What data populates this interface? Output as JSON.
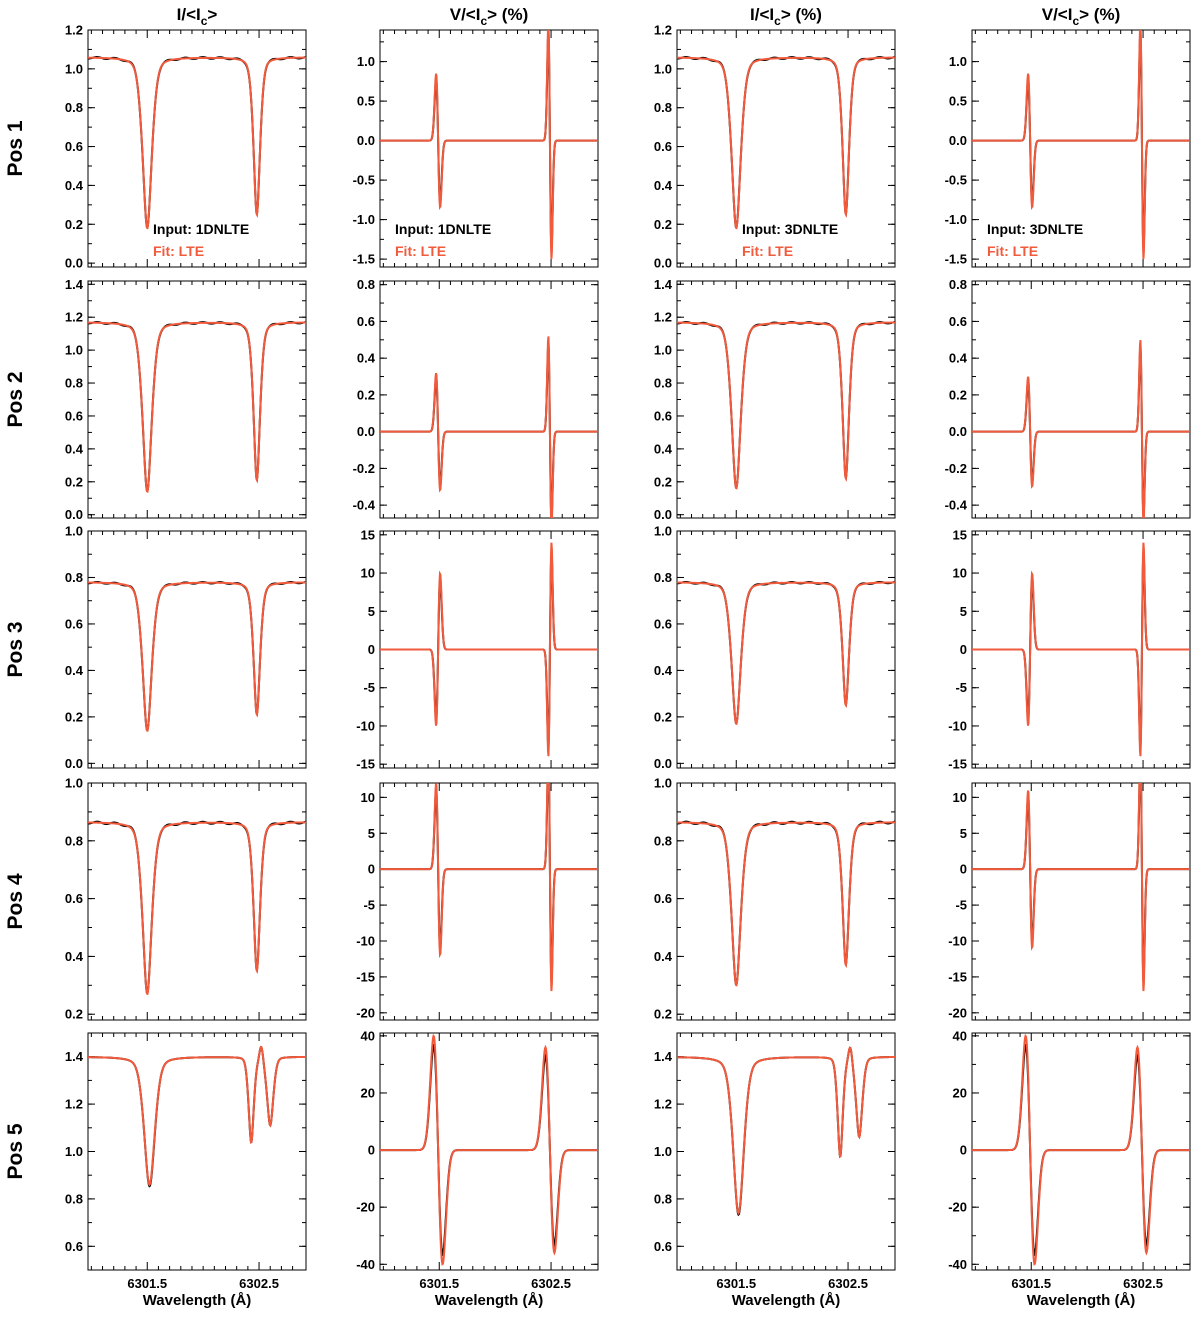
{
  "colors": {
    "input": "#000000",
    "fit": "#f25a3c"
  },
  "column_titles": [
    {
      "main": "I/<I",
      "sub": "c",
      "tail": ">"
    },
    {
      "main": "V/<I",
      "sub": "c",
      "tail": "> (%)"
    },
    {
      "main": "I/<I",
      "sub": "c",
      "tail": "> (%)"
    },
    {
      "main": "V/<I",
      "sub": "c",
      "tail": "> (%)"
    }
  ],
  "row_labels": [
    "Pos 1",
    "Pos 2",
    "Pos 3",
    "Pos 4",
    "Pos 5"
  ],
  "xlabel": "Wavelength (Å)",
  "chart_data": {
    "type": "line",
    "xlim": [
      6300.97,
      6302.92
    ],
    "xticks": [
      6301.5,
      6302.5
    ],
    "xtick_labels": [
      "6301.5",
      "6302.5"
    ],
    "lines_center": [
      6301.5,
      6302.5
    ],
    "legends": [
      {
        "row": 0,
        "col": 0,
        "input": "Input: 1DNLTE",
        "fit": "Fit: LTE"
      },
      {
        "row": 0,
        "col": 1,
        "input": "Input: 1DNLTE",
        "fit": "Fit: LTE"
      },
      {
        "row": 0,
        "col": 2,
        "input": "Input: 3DNLTE",
        "fit": "Fit: LTE"
      },
      {
        "row": 0,
        "col": 3,
        "input": "Input: 3DNLTE",
        "fit": "Fit: LTE"
      }
    ],
    "panels": [
      [
        {
          "kind": "I",
          "ylim": [
            -0.02,
            1.2
          ],
          "yticks": [
            "0.0",
            "0.2",
            "0.4",
            "0.6",
            "0.8",
            "1.0",
            "1.2"
          ],
          "cont": 1.06,
          "d1": 0.18,
          "d2": 0.25
        },
        {
          "kind": "V",
          "ylim": [
            -1.6,
            1.4
          ],
          "yticks": [
            "-1.5",
            "-1.0",
            "-0.5",
            "0.0",
            "0.5",
            "1.0"
          ],
          "a1": 0.85,
          "a2": 1.5
        },
        {
          "kind": "I",
          "ylim": [
            -0.02,
            1.2
          ],
          "yticks": [
            "0.0",
            "0.2",
            "0.4",
            "0.6",
            "0.8",
            "1.0",
            "1.2"
          ],
          "cont": 1.06,
          "d1": 0.18,
          "d2": 0.25
        },
        {
          "kind": "V",
          "ylim": [
            -1.6,
            1.4
          ],
          "yticks": [
            "-1.5",
            "-1.0",
            "-0.5",
            "0.0",
            "0.5",
            "1.0"
          ],
          "a1": 0.85,
          "a2": 1.5
        }
      ],
      [
        {
          "kind": "I",
          "ylim": [
            -0.02,
            1.42
          ],
          "yticks": [
            "0.0",
            "0.2",
            "0.4",
            "0.6",
            "0.8",
            "1.0",
            "1.2",
            "1.4"
          ],
          "cont": 1.17,
          "d1": 0.14,
          "d2": 0.21
        },
        {
          "kind": "V",
          "ylim": [
            -0.47,
            0.82
          ],
          "yticks": [
            "-0.4",
            "-0.2",
            "0.0",
            "0.2",
            "0.4",
            "0.6",
            "0.8"
          ],
          "a1": 0.32,
          "a2": 0.52
        },
        {
          "kind": "I",
          "ylim": [
            -0.02,
            1.42
          ],
          "yticks": [
            "0.0",
            "0.2",
            "0.4",
            "0.6",
            "0.8",
            "1.0",
            "1.2",
            "1.4"
          ],
          "cont": 1.17,
          "d1": 0.16,
          "d2": 0.22
        },
        {
          "kind": "V",
          "ylim": [
            -0.47,
            0.82
          ],
          "yticks": [
            "-0.4",
            "-0.2",
            "0.0",
            "0.2",
            "0.4",
            "0.6",
            "0.8"
          ],
          "a1": 0.3,
          "a2": 0.5
        }
      ],
      [
        {
          "kind": "I",
          "ylim": [
            -0.02,
            1.0
          ],
          "yticks": [
            "0.0",
            "0.2",
            "0.4",
            "0.6",
            "0.8",
            "1.0"
          ],
          "cont": 0.78,
          "d1": 0.14,
          "d2": 0.21
        },
        {
          "kind": "V",
          "ylim": [
            -15.5,
            15.5
          ],
          "yticks": [
            "-15",
            "-10",
            "-5",
            "0",
            "5",
            "10",
            "15"
          ],
          "a1": 10,
          "a2": 14
        },
        {
          "kind": "I",
          "ylim": [
            -0.02,
            1.0
          ],
          "yticks": [
            "0.0",
            "0.2",
            "0.4",
            "0.6",
            "0.8",
            "1.0"
          ],
          "cont": 0.78,
          "d1": 0.17,
          "d2": 0.25
        },
        {
          "kind": "V",
          "ylim": [
            -15.5,
            15.5
          ],
          "yticks": [
            "-15",
            "-10",
            "-5",
            "0",
            "5",
            "10",
            "15"
          ],
          "a1": 10,
          "a2": 14
        }
      ],
      [
        {
          "kind": "I",
          "ylim": [
            0.18,
            1.0
          ],
          "yticks": [
            "0.2",
            "0.4",
            "0.6",
            "0.8",
            "1.0"
          ],
          "cont": 0.865,
          "d1": 0.27,
          "d2": 0.35
        },
        {
          "kind": "V",
          "ylim": [
            -21,
            12
          ],
          "yticks": [
            "-20",
            "-15",
            "-10",
            "-5",
            "0",
            "5",
            "10"
          ],
          "a1": 12,
          "a2": 17
        },
        {
          "kind": "I",
          "ylim": [
            0.18,
            1.0
          ],
          "yticks": [
            "0.2",
            "0.4",
            "0.6",
            "0.8",
            "1.0"
          ],
          "cont": 0.865,
          "d1": 0.3,
          "d2": 0.37
        },
        {
          "kind": "V",
          "ylim": [
            -21,
            12
          ],
          "yticks": [
            "-20",
            "-15",
            "-10",
            "-5",
            "0",
            "5",
            "10"
          ],
          "a1": 11,
          "a2": 17
        }
      ],
      [
        {
          "kind": "I",
          "ylim": [
            0.5,
            1.5
          ],
          "yticks": [
            "0.6",
            "0.8",
            "1.0",
            "1.2",
            "1.4"
          ],
          "cont": 1.4,
          "d1": 0.86,
          "d2": 1.04
        },
        {
          "kind": "V",
          "ylim": [
            -42,
            41
          ],
          "yticks": [
            "-40",
            "-20",
            "0",
            "20",
            "40"
          ],
          "a1": 40,
          "a2": 36
        },
        {
          "kind": "I",
          "ylim": [
            0.5,
            1.5
          ],
          "yticks": [
            "0.6",
            "0.8",
            "1.0",
            "1.2",
            "1.4"
          ],
          "cont": 1.4,
          "d1": 0.74,
          "d2": 0.98
        },
        {
          "kind": "V",
          "ylim": [
            -42,
            41
          ],
          "yticks": [
            "-40",
            "-20",
            "0",
            "20",
            "40"
          ],
          "a1": 40,
          "a2": 36
        }
      ]
    ]
  }
}
